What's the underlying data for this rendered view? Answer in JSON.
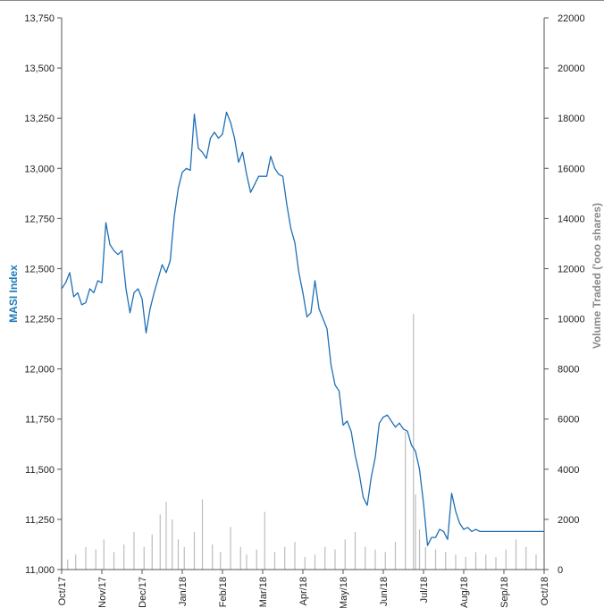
{
  "chart_data": {
    "type": "line",
    "title": "",
    "ylabel": "MASI Index",
    "y2label": "Volume Traded ('ooo shares)",
    "ylim": [
      11000,
      13750
    ],
    "y_ticks": [
      "11,000",
      "11,250",
      "11,500",
      "11,750",
      "12,000",
      "12,250",
      "12,500",
      "12,750",
      "13,000",
      "13,250",
      "13,500",
      "13,750"
    ],
    "y2lim": [
      0,
      22000
    ],
    "y2_ticks": [
      "0",
      "2000",
      "4000",
      "6000",
      "8000",
      "10000",
      "12000",
      "14000",
      "16000",
      "18000",
      "20000",
      "22000"
    ],
    "x_ticks": [
      "Oct/17",
      "Nov/17",
      "Dec/17",
      "Jan/18",
      "Feb/18",
      "Mar/18",
      "Apr/18",
      "May/18",
      "Jun/18",
      "Jul/18",
      "Aug/18",
      "Sep/18",
      "Oct/18"
    ],
    "grid": false,
    "colors": {
      "index_line": "#1f6fb5",
      "volume_bars": "#bdbdbd",
      "left_axis_title": "#1f7ab8",
      "right_axis_title": "#8a8a8a",
      "axis": "#555555"
    },
    "series": [
      {
        "name": "MASI Index",
        "kind": "line",
        "x": [
          0,
          0.1,
          0.2,
          0.3,
          0.4,
          0.5,
          0.6,
          0.7,
          0.8,
          0.9,
          1.0,
          1.1,
          1.2,
          1.3,
          1.4,
          1.5,
          1.6,
          1.7,
          1.8,
          1.9,
          2.0,
          2.1,
          2.2,
          2.3,
          2.4,
          2.5,
          2.6,
          2.7,
          2.8,
          2.9,
          3.0,
          3.1,
          3.2,
          3.3,
          3.4,
          3.5,
          3.6,
          3.7,
          3.8,
          3.9,
          4.0,
          4.1,
          4.2,
          4.3,
          4.4,
          4.5,
          4.6,
          4.7,
          4.8,
          4.9,
          5.0,
          5.1,
          5.2,
          5.3,
          5.4,
          5.5,
          5.6,
          5.7,
          5.8,
          5.9,
          6.0,
          6.1,
          6.2,
          6.3,
          6.4,
          6.5,
          6.6,
          6.7,
          6.8,
          6.9,
          7.0,
          7.1,
          7.2,
          7.3,
          7.4,
          7.5,
          7.6,
          7.7,
          7.8,
          7.9,
          8.0,
          8.1,
          8.2,
          8.3,
          8.4,
          8.5,
          8.6,
          8.7,
          8.8,
          8.9,
          9.0,
          9.1,
          9.2,
          9.3,
          9.4,
          9.5,
          9.6,
          9.7,
          9.8,
          9.9,
          10.0,
          10.1,
          10.2,
          10.3,
          10.4,
          10.5,
          10.6,
          10.7,
          10.8,
          10.9,
          11.0,
          11.1,
          11.2,
          11.3,
          11.4,
          11.5,
          11.6,
          11.7,
          11.8,
          11.9,
          12.0
        ],
        "values": [
          12400,
          12430,
          12480,
          12360,
          12380,
          12320,
          12330,
          12400,
          12380,
          12440,
          12430,
          12730,
          12620,
          12590,
          12570,
          12590,
          12400,
          12280,
          12380,
          12400,
          12350,
          12180,
          12300,
          12380,
          12450,
          12520,
          12480,
          12540,
          12760,
          12900,
          12980,
          13000,
          12990,
          13270,
          13100,
          13080,
          13050,
          13150,
          13180,
          13150,
          13170,
          13280,
          13230,
          13150,
          13030,
          13080,
          12970,
          12880,
          12920,
          12960,
          12960,
          12960,
          13060,
          13000,
          12970,
          12960,
          12820,
          12700,
          12630,
          12480,
          12380,
          12260,
          12280,
          12440,
          12300,
          12250,
          12200,
          12020,
          11920,
          11890,
          11720,
          11740,
          11690,
          11570,
          11480,
          11360,
          11320,
          11460,
          11560,
          11730,
          11760,
          11770,
          11740,
          11710,
          11730,
          11700,
          11690,
          11620,
          11590,
          11500,
          11330,
          11120,
          11160,
          11160,
          11200,
          11190,
          11150,
          11380,
          11290,
          11230,
          11200,
          11210,
          11190,
          11200,
          11190,
          11190,
          11190,
          11190,
          11190,
          11190,
          11190,
          11190,
          11190,
          11190,
          11190,
          11190,
          11190,
          11190,
          11190,
          11190,
          11190
        ]
      },
      {
        "name": "Volume Traded ('ooo shares)",
        "kind": "bar",
        "axis": "right",
        "x": [
          0.15,
          0.35,
          0.6,
          0.85,
          1.05,
          1.3,
          1.55,
          1.8,
          2.05,
          2.25,
          2.45,
          2.6,
          2.75,
          2.9,
          3.05,
          3.3,
          3.5,
          3.75,
          3.95,
          4.2,
          4.45,
          4.6,
          4.85,
          5.05,
          5.3,
          5.55,
          5.8,
          6.05,
          6.3,
          6.55,
          6.8,
          7.05,
          7.3,
          7.55,
          7.8,
          8.05,
          8.3,
          8.55,
          8.75,
          8.8,
          8.9,
          9.05,
          9.3,
          9.55,
          9.8,
          10.05,
          10.3,
          10.55,
          10.8,
          11.05,
          11.3,
          11.55,
          11.8
        ],
        "values": [
          400,
          600,
          900,
          800,
          1200,
          700,
          1000,
          1500,
          900,
          1400,
          2200,
          2700,
          2000,
          1200,
          900,
          1500,
          2800,
          1000,
          700,
          1700,
          900,
          600,
          800,
          2300,
          700,
          900,
          1100,
          500,
          600,
          900,
          800,
          1200,
          1500,
          900,
          800,
          700,
          1100,
          5500,
          10200,
          3000,
          1600,
          900,
          800,
          700,
          600,
          500,
          700,
          600,
          500,
          800,
          1200,
          900,
          600
        ]
      }
    ]
  }
}
